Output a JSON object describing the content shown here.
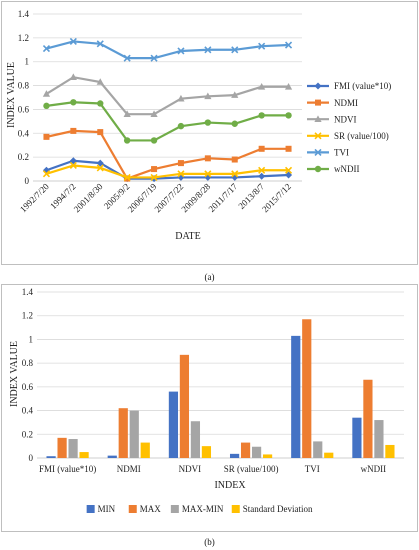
{
  "chart_data": [
    {
      "type": "line",
      "caption": "(a)",
      "xlabel": "DATE",
      "ylabel": "INDEX VALUE",
      "ylim": [
        0,
        1.4
      ],
      "yticks": [
        "0",
        "0.2",
        "0.4",
        "0.6",
        "0.8",
        "1",
        "1.2",
        "1.4"
      ],
      "grid": true,
      "legend_position": "right",
      "categories": [
        "1992/7/20",
        "1994/7/2",
        "2001/8/30",
        "2005/9/2",
        "2006/7/19",
        "2007/7/22",
        "2009/8/28",
        "2011/7/17",
        "2013/8/7",
        "2015/7/12"
      ],
      "series": [
        {
          "name": "FMI (value*10)",
          "color": "#4472c4",
          "marker": "diamond",
          "values": [
            0.09,
            0.17,
            0.15,
            0.02,
            0.02,
            0.03,
            0.03,
            0.03,
            0.04,
            0.05
          ]
        },
        {
          "name": "NDMI",
          "color": "#ed7d31",
          "marker": "square",
          "values": [
            0.37,
            0.42,
            0.41,
            0.02,
            0.1,
            0.15,
            0.19,
            0.18,
            0.27,
            0.27
          ]
        },
        {
          "name": "NDVI",
          "color": "#a5a5a5",
          "marker": "triangle",
          "values": [
            0.73,
            0.87,
            0.83,
            0.56,
            0.56,
            0.69,
            0.71,
            0.72,
            0.79,
            0.79
          ]
        },
        {
          "name": "SR (value/100)",
          "color": "#ffc000",
          "marker": "x",
          "values": [
            0.06,
            0.13,
            0.11,
            0.03,
            0.03,
            0.06,
            0.06,
            0.06,
            0.09,
            0.09
          ]
        },
        {
          "name": "TVI",
          "color": "#5b9bd5",
          "marker": "x",
          "values": [
            1.11,
            1.17,
            1.15,
            1.03,
            1.03,
            1.09,
            1.1,
            1.1,
            1.13,
            1.14
          ]
        },
        {
          "name": "wNDII",
          "color": "#70ad47",
          "marker": "circle",
          "values": [
            0.63,
            0.66,
            0.65,
            0.34,
            0.34,
            0.46,
            0.49,
            0.48,
            0.55,
            0.55
          ]
        }
      ]
    },
    {
      "type": "bar",
      "caption": "(b)",
      "xlabel": "INDEX",
      "ylabel": "INDEX VALUE",
      "ylim": [
        0,
        1.4
      ],
      "yticks": [
        "0",
        "0.2",
        "0.4",
        "0.6",
        "0.8",
        "1",
        "1.2",
        "1.4"
      ],
      "grid": true,
      "legend_position": "bottom",
      "categories": [
        "FMI (value*10)",
        "NDMI",
        "NDVI",
        "SR (value/100)",
        "TVI",
        "wNDII"
      ],
      "series": [
        {
          "name": "MIN",
          "color": "#4472c4",
          "values": [
            0.015,
            0.02,
            0.56,
            0.035,
            1.03,
            0.34
          ]
        },
        {
          "name": "MAX",
          "color": "#ed7d31",
          "values": [
            0.17,
            0.42,
            0.87,
            0.13,
            1.17,
            0.66
          ]
        },
        {
          "name": "MAX-MIN",
          "color": "#a5a5a5",
          "values": [
            0.16,
            0.4,
            0.31,
            0.095,
            0.14,
            0.32
          ]
        },
        {
          "name": "Standard Deviation",
          "color": "#ffc000",
          "values": [
            0.05,
            0.13,
            0.1,
            0.03,
            0.045,
            0.11
          ]
        }
      ]
    }
  ]
}
